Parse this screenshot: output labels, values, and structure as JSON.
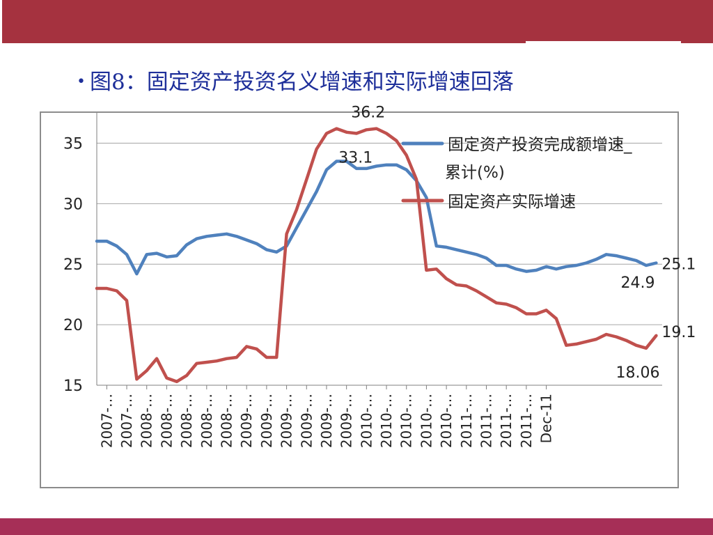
{
  "slide": {
    "bullet": "•",
    "title": "图8：固定资产投资名义增速和实际增速回落"
  },
  "colors": {
    "top_band": "#a5323f",
    "bottom_band": "#a62f57",
    "title_text": "#1e2f9a",
    "nominal_series": "#4f81bd",
    "real_series": "#c0504d",
    "grid": "#a6a6a6"
  },
  "chart_data": {
    "type": "line",
    "title": "",
    "xlabel": "",
    "ylabel": "",
    "ylim": [
      15,
      37.5
    ],
    "yticks": [
      15,
      20,
      25,
      30,
      35
    ],
    "grid": true,
    "legend_position": "top-right",
    "x_tick_labels": [
      "2007-…",
      "2007-…",
      "2008-…",
      "2008-…",
      "2008-…",
      "2008-…",
      "2008-…",
      "2009-…",
      "2009-…",
      "2009-…",
      "2009-…",
      "2009-…",
      "2009-…",
      "2010-…",
      "2010-…",
      "2010-…",
      "2010-…",
      "2010-…",
      "2011-…",
      "2011-…",
      "2011-…",
      "2011-…",
      "Dec-11"
    ],
    "x_tick_months": [
      1,
      3,
      5,
      7,
      9,
      11,
      13,
      15,
      17,
      19,
      21,
      23,
      25,
      27,
      29,
      31,
      33,
      35,
      37,
      39,
      41,
      43,
      45
    ],
    "series": [
      {
        "name": "固定资产投资完成额增速_累计(%)",
        "legend_lines": [
          "固定资产投资完成额增速_",
          "累计(%)"
        ],
        "color": "#4f81bd",
        "points": [
          [
            0,
            26.9
          ],
          [
            1,
            26.9
          ],
          [
            2,
            26.5
          ],
          [
            3,
            25.8
          ],
          [
            4,
            24.2
          ],
          [
            5,
            25.8
          ],
          [
            6,
            25.9
          ],
          [
            7,
            25.6
          ],
          [
            8,
            25.7
          ],
          [
            9,
            26.6
          ],
          [
            10,
            27.1
          ],
          [
            11,
            27.3
          ],
          [
            12,
            27.4
          ],
          [
            13,
            27.5
          ],
          [
            14,
            27.3
          ],
          [
            15,
            27.0
          ],
          [
            16,
            26.7
          ],
          [
            17,
            26.2
          ],
          [
            18,
            26.0
          ],
          [
            19,
            26.5
          ],
          [
            20,
            28.0
          ],
          [
            21,
            29.5
          ],
          [
            22,
            31.0
          ],
          [
            23,
            32.8
          ],
          [
            24,
            33.5
          ],
          [
            25,
            33.5
          ],
          [
            26,
            32.9
          ],
          [
            27,
            32.9
          ],
          [
            28,
            33.1
          ],
          [
            29,
            33.2
          ],
          [
            30,
            33.2
          ],
          [
            31,
            32.8
          ],
          [
            32,
            31.9
          ],
          [
            33,
            30.5
          ],
          [
            34,
            26.5
          ],
          [
            35,
            26.4
          ],
          [
            36,
            26.2
          ],
          [
            37,
            26.0
          ],
          [
            38,
            25.8
          ],
          [
            39,
            25.5
          ],
          [
            40,
            24.9
          ],
          [
            41,
            24.9
          ],
          [
            42,
            24.6
          ],
          [
            43,
            24.4
          ],
          [
            44,
            24.5
          ],
          [
            45,
            24.8
          ],
          [
            46,
            24.6
          ],
          [
            47,
            24.8
          ],
          [
            48,
            24.9
          ],
          [
            49,
            25.1
          ],
          [
            50,
            25.4
          ],
          [
            51,
            25.8
          ],
          [
            52,
            25.7
          ],
          [
            53,
            25.5
          ],
          [
            54,
            25.3
          ],
          [
            55,
            24.9
          ],
          [
            56,
            25.1
          ]
        ]
      },
      {
        "name": "固定资产实际增速",
        "legend_lines": [
          "固定资产实际增速"
        ],
        "color": "#c0504d",
        "points": [
          [
            0,
            23.0
          ],
          [
            1,
            23.0
          ],
          [
            2,
            22.8
          ],
          [
            3,
            22.0
          ],
          [
            4,
            15.5
          ],
          [
            5,
            16.2
          ],
          [
            6,
            17.2
          ],
          [
            7,
            15.6
          ],
          [
            8,
            15.3
          ],
          [
            9,
            15.8
          ],
          [
            10,
            16.8
          ],
          [
            11,
            16.9
          ],
          [
            12,
            17.0
          ],
          [
            13,
            17.2
          ],
          [
            14,
            17.3
          ],
          [
            15,
            18.2
          ],
          [
            16,
            18.0
          ],
          [
            17,
            17.3
          ],
          [
            18,
            17.3
          ],
          [
            19,
            27.5
          ],
          [
            20,
            29.5
          ],
          [
            21,
            32.0
          ],
          [
            22,
            34.5
          ],
          [
            23,
            35.8
          ],
          [
            24,
            36.2
          ],
          [
            25,
            35.9
          ],
          [
            26,
            35.8
          ],
          [
            27,
            36.1
          ],
          [
            28,
            36.2
          ],
          [
            29,
            35.8
          ],
          [
            30,
            35.2
          ],
          [
            31,
            34.0
          ],
          [
            32,
            32.0
          ],
          [
            33,
            24.5
          ],
          [
            34,
            24.6
          ],
          [
            35,
            23.8
          ],
          [
            36,
            23.3
          ],
          [
            37,
            23.2
          ],
          [
            38,
            22.8
          ],
          [
            39,
            22.3
          ],
          [
            40,
            21.8
          ],
          [
            41,
            21.7
          ],
          [
            42,
            21.4
          ],
          [
            43,
            20.9
          ],
          [
            44,
            20.9
          ],
          [
            45,
            21.2
          ],
          [
            46,
            20.5
          ],
          [
            47,
            18.3
          ],
          [
            48,
            18.4
          ],
          [
            49,
            18.6
          ],
          [
            50,
            18.8
          ],
          [
            51,
            19.2
          ],
          [
            52,
            19.0
          ],
          [
            53,
            18.7
          ],
          [
            54,
            18.3
          ],
          [
            55,
            18.06
          ],
          [
            56,
            19.1
          ]
        ]
      }
    ],
    "annotations": [
      {
        "text": "36.2",
        "series": 1,
        "month": 28
      },
      {
        "text": "33.1",
        "series": 0,
        "month": 28
      },
      {
        "text": "24.9",
        "series": 0,
        "month": 55
      },
      {
        "text": "25.1",
        "series": 0,
        "month": 56
      },
      {
        "text": "18.06",
        "series": 1,
        "month": 55
      },
      {
        "text": "19.1",
        "series": 1,
        "month": 56
      }
    ]
  }
}
